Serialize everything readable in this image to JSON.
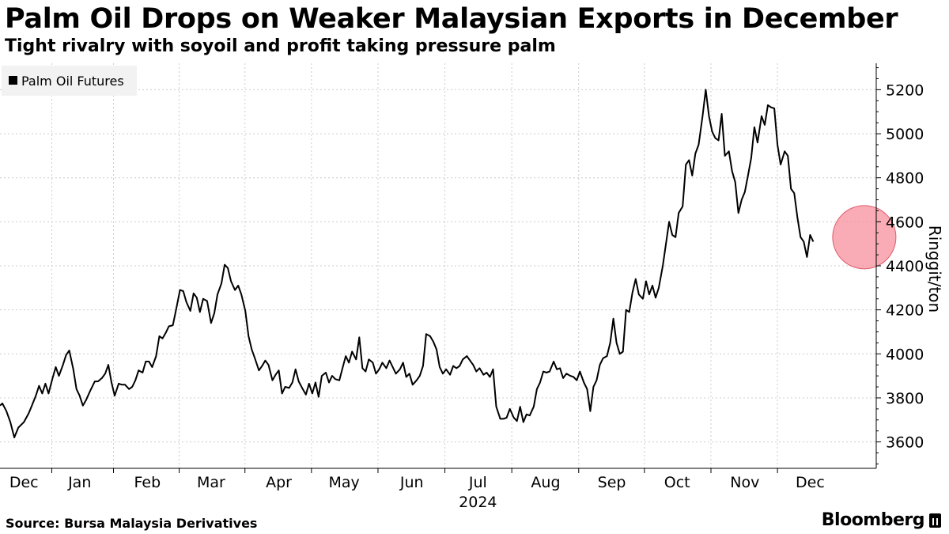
{
  "header": {
    "title": "Palm Oil Drops on Weaker Malaysian Exports in December",
    "subtitle": "Tight rivalry with soyoil and profit taking pressure palm"
  },
  "footer": {
    "source": "Source: Bursa Malaysia Derivatives",
    "brand": "Bloomberg"
  },
  "chart_data": {
    "type": "line",
    "legend": {
      "position": "top-left",
      "items": [
        "Palm Oil Futures"
      ]
    },
    "ylabel": "Ringgit/ton",
    "ylim": [
      3480,
      5320
    ],
    "y_ticks": [
      3600,
      3800,
      4000,
      4200,
      4400,
      4600,
      4800,
      5000,
      5200
    ],
    "x_range": [
      2023.9,
      2025.0
    ],
    "x_ticks": [
      {
        "label": "Dec",
        "x": 2023.93
      },
      {
        "label": "Jan",
        "x": 2024.0
      },
      {
        "label": "Feb",
        "x": 2024.085
      },
      {
        "label": "Mar",
        "x": 2024.165
      },
      {
        "label": "Apr",
        "x": 2024.25
      },
      {
        "label": "May",
        "x": 2024.332
      },
      {
        "label": "Jun",
        "x": 2024.417
      },
      {
        "label": "Jul",
        "x": 2024.5
      },
      {
        "label": "Aug",
        "x": 2024.585
      },
      {
        "label": "Sep",
        "x": 2024.668
      },
      {
        "label": "Oct",
        "x": 2024.75
      },
      {
        "label": "Nov",
        "x": 2024.835
      },
      {
        "label": "Dec",
        "x": 2024.917
      }
    ],
    "x_year_label": {
      "label": "2024",
      "x": 2024.5
    },
    "grid": {
      "x": true,
      "y": true,
      "style": "dotted"
    },
    "highlight": {
      "x": 2024.985,
      "y": 4530,
      "color": "#f7909c"
    },
    "colors": {
      "line": "#000000",
      "grid": "#cccccc"
    },
    "series": [
      {
        "name": "Palm Oil Futures",
        "points": [
          [
            2023.9,
            3765
          ],
          [
            2023.903,
            3775
          ],
          [
            2023.908,
            3740
          ],
          [
            2023.913,
            3690
          ],
          [
            2023.918,
            3620
          ],
          [
            2023.923,
            3665
          ],
          [
            2023.93,
            3690
          ],
          [
            2023.936,
            3730
          ],
          [
            2023.94,
            3765
          ],
          [
            2023.945,
            3810
          ],
          [
            2023.949,
            3855
          ],
          [
            2023.953,
            3820
          ],
          [
            2023.957,
            3865
          ],
          [
            2023.961,
            3820
          ],
          [
            2023.966,
            3890
          ],
          [
            2023.97,
            3940
          ],
          [
            2023.974,
            3900
          ],
          [
            2023.979,
            3950
          ],
          [
            2023.983,
            3995
          ],
          [
            2023.987,
            4015
          ],
          [
            2023.992,
            3930
          ],
          [
            2023.996,
            3840
          ],
          [
            2024.0,
            3810
          ],
          [
            2024.004,
            3765
          ],
          [
            2024.008,
            3790
          ],
          [
            2024.013,
            3830
          ],
          [
            2024.019,
            3875
          ],
          [
            2024.023,
            3875
          ],
          [
            2024.028,
            3890
          ],
          [
            2024.032,
            3910
          ],
          [
            2024.036,
            3950
          ],
          [
            2024.04,
            3870
          ],
          [
            2024.044,
            3810
          ],
          [
            2024.049,
            3865
          ],
          [
            2024.053,
            3860
          ],
          [
            2024.057,
            3860
          ],
          [
            2024.062,
            3840
          ],
          [
            2024.066,
            3850
          ],
          [
            2024.07,
            3880
          ],
          [
            2024.074,
            3925
          ],
          [
            2024.079,
            3915
          ],
          [
            2024.083,
            3965
          ],
          [
            2024.087,
            3965
          ],
          [
            2024.091,
            3940
          ],
          [
            2024.096,
            3990
          ],
          [
            2024.1,
            4080
          ],
          [
            2024.104,
            4070
          ],
          [
            2024.108,
            4095
          ],
          [
            2024.112,
            4125
          ],
          [
            2024.117,
            4130
          ],
          [
            2024.121,
            4200
          ],
          [
            2024.126,
            4290
          ],
          [
            2024.13,
            4285
          ],
          [
            2024.134,
            4235
          ],
          [
            2024.139,
            4195
          ],
          [
            2024.143,
            4275
          ],
          [
            2024.147,
            4255
          ],
          [
            2024.151,
            4190
          ],
          [
            2024.155,
            4250
          ],
          [
            2024.16,
            4240
          ],
          [
            2024.165,
            4140
          ],
          [
            2024.169,
            4185
          ],
          [
            2024.173,
            4270
          ],
          [
            2024.178,
            4320
          ],
          [
            2024.182,
            4405
          ],
          [
            2024.186,
            4390
          ],
          [
            2024.19,
            4330
          ],
          [
            2024.195,
            4290
          ],
          [
            2024.199,
            4310
          ],
          [
            2024.203,
            4270
          ],
          [
            2024.208,
            4195
          ],
          [
            2024.212,
            4080
          ],
          [
            2024.216,
            4020
          ],
          [
            2024.22,
            3980
          ],
          [
            2024.225,
            3925
          ],
          [
            2024.229,
            3945
          ],
          [
            2024.233,
            3970
          ],
          [
            2024.237,
            3950
          ],
          [
            2024.242,
            3880
          ],
          [
            2024.246,
            3905
          ],
          [
            2024.25,
            3925
          ],
          [
            2024.254,
            3820
          ],
          [
            2024.258,
            3850
          ],
          [
            2024.263,
            3845
          ],
          [
            2024.267,
            3870
          ],
          [
            2024.271,
            3930
          ],
          [
            2024.275,
            3875
          ],
          [
            2024.28,
            3840
          ],
          [
            2024.284,
            3815
          ],
          [
            2024.288,
            3865
          ],
          [
            2024.292,
            3820
          ],
          [
            2024.296,
            3870
          ],
          [
            2024.3,
            3805
          ],
          [
            2024.304,
            3900
          ],
          [
            2024.309,
            3915
          ],
          [
            2024.313,
            3870
          ],
          [
            2024.317,
            3900
          ],
          [
            2024.321,
            3885
          ],
          [
            2024.326,
            3880
          ],
          [
            2024.33,
            3935
          ],
          [
            2024.334,
            3990
          ],
          [
            2024.338,
            3960
          ],
          [
            2024.342,
            4010
          ],
          [
            2024.347,
            3975
          ],
          [
            2024.351,
            4075
          ],
          [
            2024.355,
            3935
          ],
          [
            2024.359,
            3920
          ],
          [
            2024.363,
            3975
          ],
          [
            2024.368,
            3960
          ],
          [
            2024.372,
            3910
          ],
          [
            2024.376,
            3930
          ],
          [
            2024.38,
            3960
          ],
          [
            2024.385,
            3935
          ],
          [
            2024.389,
            3970
          ],
          [
            2024.393,
            3940
          ],
          [
            2024.397,
            3910
          ],
          [
            2024.402,
            3930
          ],
          [
            2024.406,
            3960
          ],
          [
            2024.41,
            3895
          ],
          [
            2024.414,
            3910
          ],
          [
            2024.418,
            3860
          ],
          [
            2024.423,
            3880
          ],
          [
            2024.427,
            3900
          ],
          [
            2024.431,
            3945
          ],
          [
            2024.435,
            4090
          ],
          [
            2024.44,
            4080
          ],
          [
            2024.444,
            4055
          ],
          [
            2024.448,
            4020
          ],
          [
            2024.452,
            3940
          ],
          [
            2024.456,
            3910
          ],
          [
            2024.46,
            3930
          ],
          [
            2024.465,
            3905
          ],
          [
            2024.469,
            3945
          ],
          [
            2024.473,
            3935
          ],
          [
            2024.477,
            3945
          ],
          [
            2024.481,
            3975
          ],
          [
            2024.486,
            3990
          ],
          [
            2024.49,
            3970
          ],
          [
            2024.494,
            3950
          ],
          [
            2024.498,
            3920
          ],
          [
            2024.502,
            3935
          ],
          [
            2024.507,
            3905
          ],
          [
            2024.511,
            3915
          ],
          [
            2024.515,
            3895
          ],
          [
            2024.519,
            3930
          ],
          [
            2024.523,
            3760
          ],
          [
            2024.528,
            3705
          ],
          [
            2024.532,
            3705
          ],
          [
            2024.536,
            3710
          ],
          [
            2024.54,
            3750
          ],
          [
            2024.545,
            3710
          ],
          [
            2024.549,
            3695
          ],
          [
            2024.553,
            3760
          ],
          [
            2024.557,
            3690
          ],
          [
            2024.561,
            3725
          ],
          [
            2024.565,
            3720
          ],
          [
            2024.57,
            3760
          ],
          [
            2024.574,
            3840
          ],
          [
            2024.578,
            3870
          ],
          [
            2024.582,
            3920
          ],
          [
            2024.586,
            3915
          ],
          [
            2024.59,
            3920
          ],
          [
            2024.595,
            3965
          ],
          [
            2024.599,
            3930
          ],
          [
            2024.603,
            3935
          ],
          [
            2024.607,
            3890
          ],
          [
            2024.611,
            3910
          ],
          [
            2024.616,
            3900
          ],
          [
            2024.62,
            3895
          ],
          [
            2024.624,
            3880
          ],
          [
            2024.628,
            3920
          ],
          [
            2024.633,
            3870
          ],
          [
            2024.637,
            3840
          ],
          [
            2024.641,
            3740
          ],
          [
            2024.645,
            3850
          ],
          [
            2024.649,
            3880
          ],
          [
            2024.653,
            3950
          ],
          [
            2024.657,
            3980
          ],
          [
            2024.662,
            3990
          ],
          [
            2024.666,
            4050
          ],
          [
            2024.67,
            4160
          ],
          [
            2024.674,
            4050
          ],
          [
            2024.678,
            4000
          ],
          [
            2024.682,
            4010
          ],
          [
            2024.686,
            4200
          ],
          [
            2024.69,
            4190
          ],
          [
            2024.694,
            4280
          ],
          [
            2024.698,
            4340
          ],
          [
            2024.702,
            4270
          ],
          [
            2024.707,
            4250
          ],
          [
            2024.711,
            4330
          ],
          [
            2024.715,
            4270
          ],
          [
            2024.719,
            4310
          ],
          [
            2024.723,
            4255
          ],
          [
            2024.727,
            4300
          ],
          [
            2024.732,
            4400
          ],
          [
            2024.736,
            4500
          ],
          [
            2024.74,
            4600
          ],
          [
            2024.744,
            4540
          ],
          [
            2024.748,
            4530
          ],
          [
            2024.752,
            4640
          ],
          [
            2024.757,
            4670
          ],
          [
            2024.761,
            4860
          ],
          [
            2024.765,
            4880
          ],
          [
            2024.769,
            4810
          ],
          [
            2024.773,
            4910
          ],
          [
            2024.777,
            4950
          ],
          [
            2024.782,
            5080
          ],
          [
            2024.786,
            5200
          ],
          [
            2024.79,
            5080
          ],
          [
            2024.794,
            5010
          ],
          [
            2024.798,
            4980
          ],
          [
            2024.802,
            4970
          ],
          [
            2024.806,
            5090
          ],
          [
            2024.81,
            4900
          ],
          [
            2024.815,
            4920
          ],
          [
            2024.819,
            4830
          ],
          [
            2024.823,
            4780
          ],
          [
            2024.827,
            4640
          ],
          [
            2024.831,
            4700
          ],
          [
            2024.835,
            4735
          ],
          [
            2024.839,
            4810
          ],
          [
            2024.843,
            4890
          ],
          [
            2024.847,
            5030
          ],
          [
            2024.851,
            4960
          ],
          [
            2024.856,
            5080
          ],
          [
            2024.86,
            5040
          ],
          [
            2024.864,
            5130
          ],
          [
            2024.868,
            5120
          ],
          [
            2024.872,
            5115
          ],
          [
            2024.876,
            4950
          ],
          [
            2024.88,
            4860
          ],
          [
            2024.885,
            4920
          ],
          [
            2024.889,
            4900
          ],
          [
            2024.893,
            4750
          ],
          [
            2024.897,
            4730
          ],
          [
            2024.901,
            4620
          ],
          [
            2024.905,
            4530
          ],
          [
            2024.909,
            4510
          ],
          [
            2024.913,
            4440
          ],
          [
            2024.917,
            4540
          ],
          [
            2024.921,
            4510
          ]
        ]
      }
    ]
  }
}
